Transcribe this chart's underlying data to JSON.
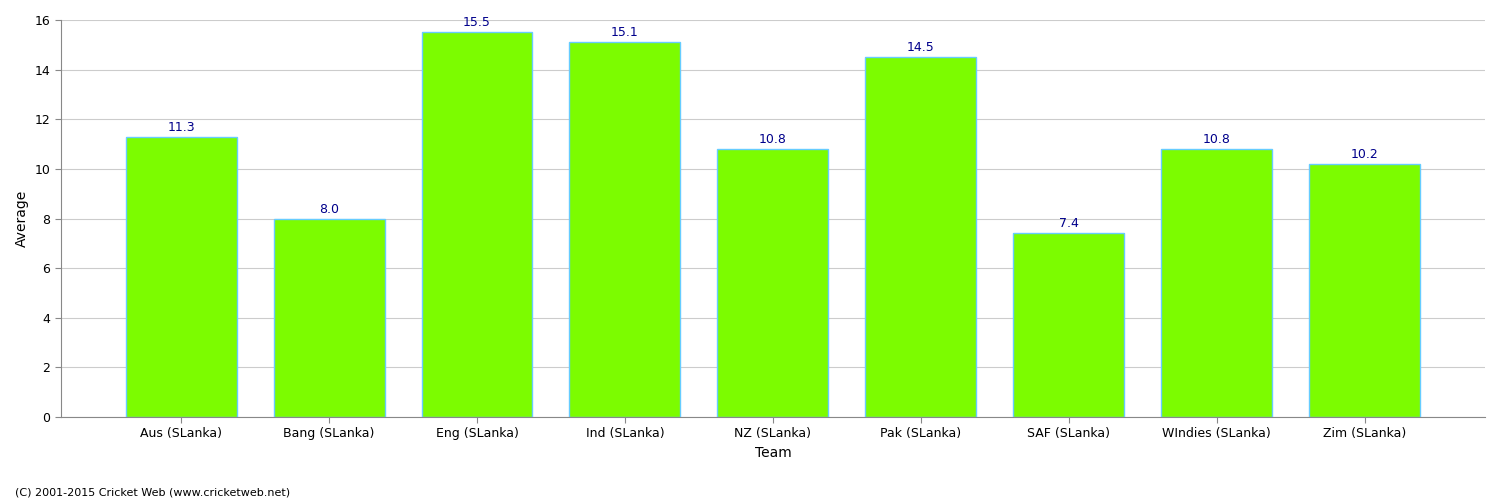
{
  "categories": [
    "Aus (SLanka)",
    "Bang (SLanka)",
    "Eng (SLanka)",
    "Ind (SLanka)",
    "NZ (SLanka)",
    "Pak (SLanka)",
    "SAF (SLanka)",
    "WIndies (SLanka)",
    "Zim (SLanka)"
  ],
  "values": [
    11.3,
    8.0,
    15.5,
    15.1,
    10.8,
    14.5,
    7.4,
    10.8,
    10.2
  ],
  "bar_color": "#7CFC00",
  "bar_edge_color": "#66CCFF",
  "label_color": "#00008B",
  "xlabel": "Team",
  "ylabel": "Average",
  "ylim": [
    0,
    16
  ],
  "yticks": [
    0,
    2,
    4,
    6,
    8,
    10,
    12,
    14,
    16
  ],
  "background_color": "#FFFFFF",
  "grid_color": "#CCCCCC",
  "footer_text": "(C) 2001-2015 Cricket Web (www.cricketweb.net)",
  "label_fontsize": 9,
  "axis_label_fontsize": 10,
  "tick_fontsize": 9,
  "footer_fontsize": 8
}
